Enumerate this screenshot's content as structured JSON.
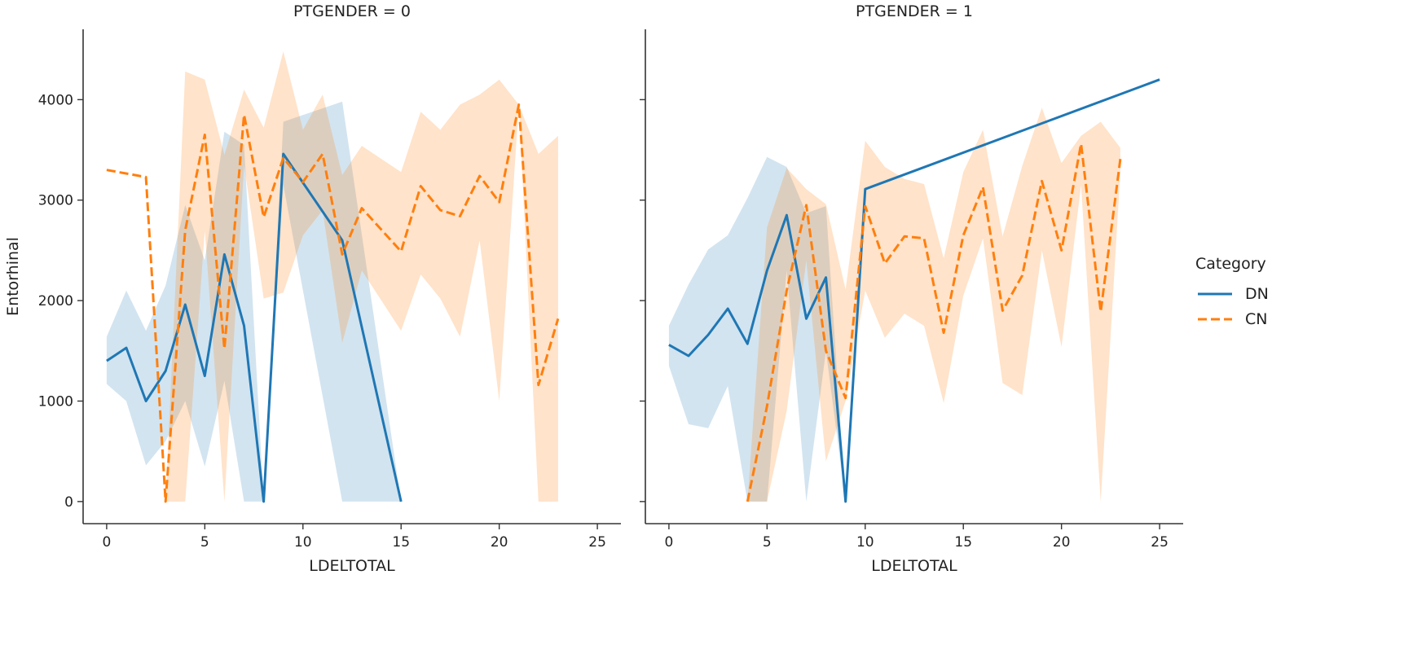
{
  "chart_data": {
    "type": "line",
    "figure": "faceted line plot with confidence bands",
    "y_label": "Entorhinal",
    "legend": {
      "title": "Category",
      "placement": "right",
      "entries": [
        {
          "name": "DN",
          "color": "#1f77b4",
          "style": "solid"
        },
        {
          "name": "CN",
          "color": "#ff7f0e",
          "style": "dashed"
        }
      ]
    },
    "x_ticks": [
      0,
      5,
      10,
      15,
      20,
      25
    ],
    "y_ticks": [
      0,
      1000,
      2000,
      3000,
      4000
    ],
    "xlim": [
      -1.2,
      26.2
    ],
    "ylim": [
      -220,
      4700
    ],
    "panels": [
      {
        "title": "PTGENDER = 0",
        "x_label": "LDELTOTAL",
        "series": [
          {
            "name": "DN",
            "x": [
              0,
              1,
              2,
              3,
              4,
              5,
              6,
              7,
              8,
              9,
              12,
              15
            ],
            "y": [
              1400,
              1530,
              1000,
              1300,
              1960,
              1250,
              2460,
              1750,
              0,
              3460,
              2600,
              0
            ],
            "lower": [
              1170,
              1000,
              360,
              600,
              1000,
              350,
              1200,
              0,
              0,
              3150,
              0,
              0
            ],
            "upper": [
              1640,
              2100,
              1700,
              2150,
              2950,
              2400,
              3680,
              3550,
              0,
              3780,
              3980,
              0
            ]
          },
          {
            "name": "CN",
            "x": [
              0,
              2,
              3,
              4,
              5,
              6,
              7,
              8,
              9,
              10,
              11,
              12,
              13,
              15,
              16,
              17,
              18,
              19,
              20,
              21,
              22,
              23
            ],
            "y": [
              3300,
              3230,
              0,
              2700,
              3650,
              1520,
              3850,
              2830,
              3420,
              3180,
              3460,
              2460,
              2920,
              2490,
              3140,
              2900,
              2840,
              3240,
              2980,
              3950,
              1160,
              1820
            ],
            "lower": [
              3300,
              3230,
              0,
              0,
              2700,
              0,
              3350,
              2020,
              2080,
              2650,
              2900,
              1580,
              2300,
              1700,
              2260,
              2020,
              1640,
              2600,
              1000,
              3950,
              0,
              0
            ],
            "upper": [
              3300,
              3230,
              0,
              4280,
              4200,
              3450,
              4100,
              3720,
              4480,
              3700,
              4050,
              3250,
              3540,
              3280,
              3880,
              3700,
              3950,
              4050,
              4200,
              3950,
              3460,
              3640
            ]
          }
        ]
      },
      {
        "title": "PTGENDER = 1",
        "x_label": "LDELTOTAL",
        "series": [
          {
            "name": "DN",
            "x": [
              0,
              1,
              2,
              3,
              4,
              5,
              6,
              7,
              8,
              9,
              10,
              25
            ],
            "y": [
              1560,
              1450,
              1660,
              1920,
              1570,
              2300,
              2850,
              1820,
              2230,
              0,
              3110,
              4200
            ],
            "lower": [
              1350,
              770,
              730,
              1150,
              0,
              0,
              2300,
              0,
              1500,
              0,
              3110,
              4200
            ],
            "upper": [
              1750,
              2160,
              2510,
              2650,
              3020,
              3430,
              3330,
              2870,
              2940,
              0,
              3110,
              4200
            ]
          },
          {
            "name": "CN",
            "x": [
              4,
              5,
              6,
              7,
              8,
              9,
              10,
              11,
              12,
              13,
              14,
              15,
              16,
              17,
              18,
              19,
              20,
              21,
              22,
              23
            ],
            "y": [
              0,
              950,
              2100,
              2950,
              1500,
              1030,
              2940,
              2370,
              2640,
              2620,
              1680,
              2650,
              3130,
              1900,
              2250,
              3190,
              2500,
              3560,
              1890,
              3410
            ],
            "lower": [
              0,
              0,
              900,
              2400,
              400,
              1000,
              2100,
              1630,
              1870,
              1750,
              980,
              2050,
              2620,
              1180,
              1060,
              2500,
              1540,
              3150,
              0,
              3280
            ],
            "upper": [
              0,
              2730,
              3320,
              3110,
              2960,
              2110,
              3590,
              3330,
              3210,
              3160,
              2420,
              3280,
              3700,
              2640,
              3340,
              3920,
              3370,
              3640,
              3780,
              3520
            ]
          }
        ]
      }
    ]
  }
}
